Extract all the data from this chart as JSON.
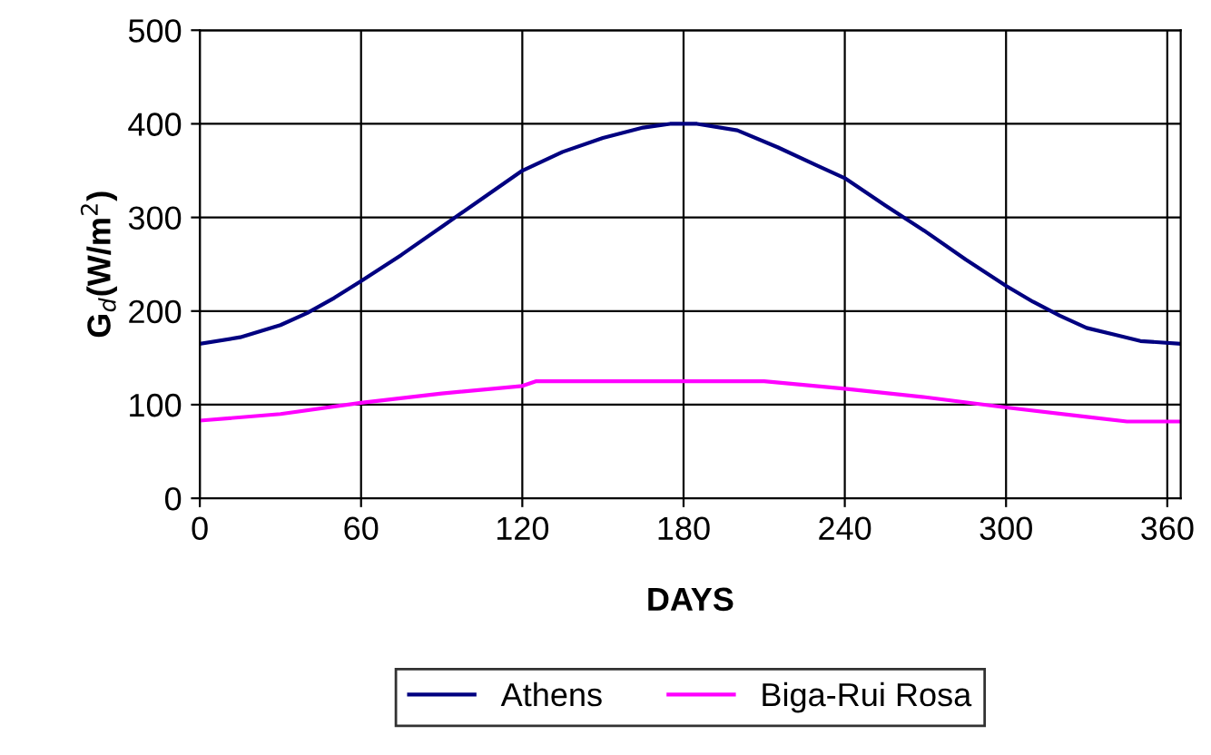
{
  "chart_data": {
    "type": "line",
    "xlabel": "DAYS",
    "ylabel": "G$_{d}$(W/m$^{2}$)",
    "xlim": [
      0,
      365
    ],
    "xticks": [
      0,
      60,
      120,
      180,
      240,
      300,
      360
    ],
    "ylim": [
      0,
      500
    ],
    "yticks": [
      0,
      100,
      200,
      300,
      400,
      500
    ],
    "grid": true,
    "legend": "bottom",
    "marker": "none",
    "line_style": "solid",
    "series": [
      {
        "name": "Athens",
        "color": "#000080",
        "x": [
          0,
          15,
          30,
          40,
          50,
          60,
          75,
          90,
          105,
          120,
          135,
          150,
          165,
          175,
          185,
          200,
          215,
          230,
          240,
          255,
          270,
          285,
          300,
          310,
          320,
          330,
          340,
          350,
          365
        ],
        "values": [
          165,
          172,
          185,
          198,
          214,
          232,
          260,
          290,
          320,
          350,
          370,
          385,
          396,
          400,
          400,
          393,
          375,
          355,
          342,
          313,
          285,
          255,
          227,
          210,
          195,
          182,
          175,
          168,
          165
        ]
      },
      {
        "name": "Biga-Rui Rosa",
        "color": "#ff00ff",
        "x": [
          0,
          30,
          60,
          90,
          120,
          125,
          150,
          180,
          210,
          240,
          270,
          300,
          330,
          345,
          365
        ],
        "values": [
          83,
          90,
          102,
          112,
          120,
          125,
          125,
          125,
          125,
          117,
          108,
          97,
          87,
          82,
          82
        ]
      }
    ]
  }
}
